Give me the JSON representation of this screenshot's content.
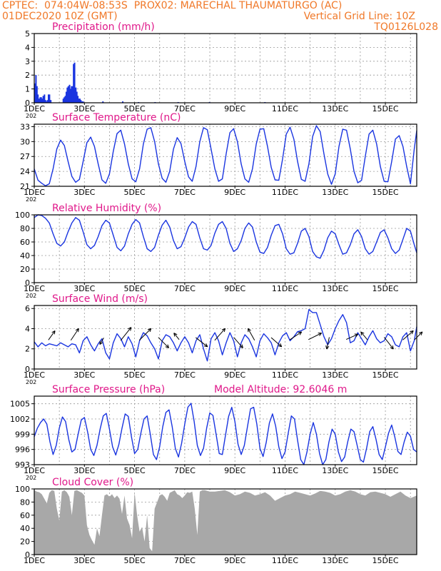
{
  "header": {
    "line1_left": "CPTEC:  074:04W-08:53S  PROX02: MARECHAL THAUMATURGO (AC)",
    "line2_left": "01DEC2020 10Z (GMT)",
    "line2_right": "Vertical Grid Line: 10Z",
    "line3_right": "TQ0126L028"
  },
  "colors": {
    "header": "#f07828",
    "title": "#e0188a",
    "series": "#1a35e0",
    "cloud": "#a8a8a8",
    "grid": "#999999"
  },
  "x_axis": {
    "tick_labels": [
      "1DEC",
      "3DEC",
      "5DEC",
      "7DEC",
      "9DEC",
      "11DEC",
      "13DEC",
      "15DEC"
    ],
    "year_stub": "202",
    "range_days": [
      0,
      15.25
    ],
    "grid_every_days": 1
  },
  "chart_data": [
    {
      "id": "precip",
      "type": "bar",
      "title": "Precipitation (mm/h)",
      "ylim": [
        0,
        5
      ],
      "yticks": [
        0,
        1,
        2,
        3,
        4,
        5
      ],
      "grid": true,
      "x_units": "days since 01DEC2020 10Z",
      "x": [
        0.0,
        0.04,
        0.08,
        0.12,
        0.17,
        0.21,
        0.25,
        0.29,
        0.33,
        0.38,
        0.42,
        0.46,
        0.5,
        0.54,
        0.58,
        0.63,
        1.13,
        1.17,
        1.21,
        1.25,
        1.29,
        1.33,
        1.38,
        1.42,
        1.46,
        1.5,
        1.54,
        1.58,
        1.63,
        1.67,
        1.71,
        1.75,
        1.79,
        1.83,
        1.88,
        1.92,
        2.71,
        3.5,
        4.13,
        4.79,
        5.71,
        6.96,
        9.17
      ],
      "values": [
        1.4,
        2.0,
        1.2,
        0.6,
        0.3,
        0.4,
        0.4,
        0.3,
        0.5,
        0.6,
        0.2,
        0.1,
        0.2,
        0.6,
        0.6,
        0.2,
        0.3,
        0.4,
        0.5,
        0.8,
        1.1,
        1.2,
        1.3,
        1.0,
        1.2,
        1.2,
        2.8,
        2.9,
        1.1,
        0.8,
        0.5,
        0.3,
        0.3,
        0.2,
        0.1,
        0.1,
        0.1,
        0.1,
        0.05,
        0.05,
        0.05,
        0.05,
        0.05
      ]
    },
    {
      "id": "temp",
      "type": "line",
      "title": "Surface Temperature (nC)",
      "ylim": [
        21,
        33.5
      ],
      "yticks": [
        21,
        24,
        27,
        30,
        33
      ],
      "grid": true,
      "x_units": "days since 01DEC2020 10Z",
      "x": [
        0,
        0.15,
        0.3,
        0.45,
        0.6,
        0.75,
        0.9,
        1.05,
        1.2,
        1.35,
        1.5,
        1.65,
        1.8,
        1.95,
        2.1,
        2.25,
        2.4,
        2.55,
        2.7,
        2.85,
        3.0,
        3.15,
        3.3,
        3.45,
        3.6,
        3.75,
        3.9,
        4.05,
        4.2,
        4.35,
        4.5,
        4.65,
        4.8,
        4.95,
        5.1,
        5.25,
        5.4,
        5.55,
        5.7,
        5.85,
        6.0,
        6.15,
        6.3,
        6.45,
        6.6,
        6.75,
        6.9,
        7.05,
        7.2,
        7.35,
        7.5,
        7.65,
        7.8,
        7.95,
        8.1,
        8.25,
        8.4,
        8.55,
        8.7,
        8.85,
        9.0,
        9.15,
        9.3,
        9.45,
        9.6,
        9.75,
        9.9,
        10.05,
        10.2,
        10.35,
        10.5,
        10.65,
        10.8,
        10.95,
        11.1,
        11.25,
        11.4,
        11.55,
        11.7,
        11.85,
        12.0,
        12.15,
        12.3,
        12.45,
        12.6,
        12.75,
        12.9,
        13.05,
        13.2,
        13.35,
        13.5,
        13.65,
        13.8,
        13.95,
        14.1,
        14.25,
        14.4,
        14.55,
        14.7,
        14.85,
        15.0,
        15.15,
        15.25
      ],
      "values": [
        24.5,
        22.2,
        21.6,
        21.1,
        21.5,
        24.5,
        28.5,
        30.3,
        29.2,
        26.0,
        23.0,
        21.8,
        22.4,
        26.0,
        29.8,
        30.9,
        29.0,
        25.5,
        22.3,
        21.6,
        23.5,
        28.0,
        31.6,
        32.3,
        29.5,
        25.5,
        22.5,
        21.9,
        24.5,
        29.5,
        32.5,
        32.8,
        30.0,
        25.5,
        22.6,
        21.8,
        24.0,
        28.5,
        30.8,
        29.6,
        26.0,
        22.9,
        22.0,
        25.0,
        30.0,
        32.8,
        32.4,
        28.5,
        24.5,
        22.0,
        22.5,
        27.5,
        31.8,
        32.6,
        30.0,
        25.5,
        22.5,
        21.8,
        24.5,
        29.5,
        32.5,
        32.6,
        29.0,
        24.8,
        22.3,
        22.2,
        26.5,
        31.5,
        32.9,
        30.5,
        26.0,
        22.4,
        22.0,
        25.5,
        31.0,
        33.2,
        32.0,
        27.5,
        23.5,
        21.4,
        23.5,
        29.0,
        32.5,
        32.3,
        28.5,
        24.0,
        21.7,
        22.2,
        27.0,
        31.5,
        32.3,
        29.5,
        25.0,
        22.0,
        21.9,
        26.0,
        30.5,
        31.2,
        29.0,
        25.0,
        21.5,
        28.5,
        32.2
      ]
    },
    {
      "id": "rh",
      "type": "line",
      "title": "Relative Humidity (%)",
      "ylim": [
        0,
        100
      ],
      "yticks": [
        0,
        20,
        40,
        60,
        80,
        100
      ],
      "grid": true,
      "x_units": "days since 01DEC2020 10Z",
      "x": [
        0,
        0.15,
        0.3,
        0.45,
        0.6,
        0.75,
        0.9,
        1.05,
        1.2,
        1.35,
        1.5,
        1.65,
        1.8,
        1.95,
        2.1,
        2.25,
        2.4,
        2.55,
        2.7,
        2.85,
        3.0,
        3.15,
        3.3,
        3.45,
        3.6,
        3.75,
        3.9,
        4.05,
        4.2,
        4.35,
        4.5,
        4.65,
        4.8,
        4.95,
        5.1,
        5.25,
        5.4,
        5.55,
        5.7,
        5.85,
        6.0,
        6.15,
        6.3,
        6.45,
        6.6,
        6.75,
        6.9,
        7.05,
        7.2,
        7.35,
        7.5,
        7.65,
        7.8,
        7.95,
        8.1,
        8.25,
        8.4,
        8.55,
        8.7,
        8.85,
        9.0,
        9.15,
        9.3,
        9.45,
        9.6,
        9.75,
        9.9,
        10.05,
        10.2,
        10.35,
        10.5,
        10.65,
        10.8,
        10.95,
        11.1,
        11.25,
        11.4,
        11.55,
        11.7,
        11.85,
        12.0,
        12.15,
        12.3,
        12.45,
        12.6,
        12.75,
        12.9,
        13.05,
        13.2,
        13.35,
        13.5,
        13.65,
        13.8,
        13.95,
        14.1,
        14.25,
        14.4,
        14.55,
        14.7,
        14.85,
        15.0,
        15.15,
        15.25
      ],
      "values": [
        96,
        100,
        99,
        95,
        88,
        72,
        58,
        54,
        60,
        75,
        88,
        96,
        92,
        75,
        56,
        50,
        55,
        68,
        84,
        92,
        88,
        70,
        52,
        47,
        54,
        72,
        86,
        93,
        88,
        68,
        50,
        46,
        52,
        70,
        85,
        92,
        82,
        62,
        50,
        53,
        66,
        82,
        90,
        86,
        66,
        50,
        48,
        55,
        73,
        86,
        90,
        80,
        58,
        46,
        50,
        62,
        80,
        88,
        82,
        60,
        45,
        43,
        52,
        70,
        84,
        86,
        72,
        50,
        42,
        44,
        58,
        76,
        80,
        68,
        46,
        38,
        36,
        48,
        66,
        76,
        72,
        56,
        42,
        44,
        56,
        72,
        78,
        68,
        50,
        42,
        46,
        60,
        74,
        78,
        66,
        50,
        43,
        48,
        64,
        80,
        76,
        56,
        44
      ]
    },
    {
      "id": "wind",
      "type": "line",
      "title": "Surface Wind (m/s)",
      "ylim": [
        0,
        6.3
      ],
      "yticks": [
        0,
        2,
        4,
        6
      ],
      "grid": true,
      "x_units": "days since 01DEC2020 10Z",
      "x": [
        0,
        0.15,
        0.3,
        0.45,
        0.6,
        0.75,
        0.9,
        1.05,
        1.2,
        1.35,
        1.5,
        1.65,
        1.8,
        1.95,
        2.1,
        2.25,
        2.4,
        2.55,
        2.7,
        2.85,
        3.0,
        3.15,
        3.3,
        3.45,
        3.6,
        3.75,
        3.9,
        4.05,
        4.2,
        4.35,
        4.5,
        4.65,
        4.8,
        4.95,
        5.1,
        5.25,
        5.4,
        5.55,
        5.7,
        5.85,
        6.0,
        6.15,
        6.3,
        6.45,
        6.6,
        6.75,
        6.9,
        7.05,
        7.2,
        7.35,
        7.5,
        7.65,
        7.8,
        7.95,
        8.1,
        8.25,
        8.4,
        8.55,
        8.7,
        8.85,
        9.0,
        9.15,
        9.3,
        9.45,
        9.6,
        9.75,
        9.9,
        10.05,
        10.2,
        10.35,
        10.5,
        10.65,
        10.8,
        10.95,
        11.1,
        11.25,
        11.4,
        11.55,
        11.7,
        11.85,
        12.0,
        12.15,
        12.3,
        12.45,
        12.6,
        12.75,
        12.9,
        13.05,
        13.2,
        13.35,
        13.5,
        13.65,
        13.8,
        13.95,
        14.1,
        14.25,
        14.4,
        14.55,
        14.7,
        14.85,
        15.0,
        15.15,
        15.25
      ],
      "values": [
        2.7,
        2.2,
        2.6,
        2.3,
        2.5,
        2.4,
        2.3,
        2.6,
        2.4,
        2.2,
        2.5,
        2.4,
        1.6,
        2.8,
        3.2,
        2.4,
        1.8,
        2.5,
        3.0,
        1.6,
        1.0,
        2.6,
        3.5,
        3.0,
        2.2,
        3.2,
        2.5,
        1.2,
        2.8,
        3.6,
        3.3,
        2.6,
        2.0,
        1.0,
        2.8,
        3.4,
        3.2,
        2.6,
        1.8,
        2.6,
        3.2,
        2.6,
        1.6,
        2.8,
        3.4,
        2.0,
        0.8,
        3.0,
        3.6,
        2.8,
        1.4,
        2.6,
        3.6,
        2.8,
        1.2,
        2.6,
        3.4,
        3.0,
        2.2,
        1.2,
        2.8,
        3.5,
        3.1,
        2.6,
        1.4,
        2.6,
        3.3,
        3.6,
        2.8,
        3.2,
        3.7,
        3.8,
        4.0,
        5.9,
        5.6,
        5.6,
        4.4,
        3.2,
        2.4,
        3.0,
        4.0,
        4.8,
        5.4,
        4.6,
        2.6,
        2.8,
        3.6,
        3.0,
        2.4,
        3.2,
        3.8,
        3.0,
        2.6,
        2.8,
        3.5,
        3.2,
        2.4,
        2.2,
        3.2,
        3.6,
        1.8,
        2.8,
        4.2
      ],
      "arrows": {
        "x": [
          0.6,
          1.5,
          2.75,
          3.5,
          4.25,
          5.0,
          5.75,
          6.5,
          7.25,
          8.0,
          8.75,
          9.5,
          10.25,
          11.0,
          11.75,
          12.5,
          13.25,
          14.0,
          14.75,
          15.2
        ],
        "u": [
          0.5,
          0.6,
          -0.3,
          0.8,
          0.9,
          0.8,
          -0.4,
          0.9,
          0.8,
          0.7,
          -0.5,
          0.8,
          0.9,
          1.0,
          -0.2,
          0.9,
          -0.5,
          0.7,
          0.8,
          0.6
        ],
        "v": [
          0.7,
          0.9,
          -0.5,
          1.0,
          0.9,
          -0.8,
          0.5,
          -0.7,
          0.9,
          -0.8,
          0.9,
          -0.7,
          0.6,
          0.5,
          -0.9,
          0.4,
          0.6,
          -0.9,
          0.7,
          0.6
        ]
      }
    },
    {
      "id": "pres",
      "type": "line",
      "title": "Surface Pressure (hPa)",
      "annotation": "Model Altitude: 92.6046 m",
      "ylim": [
        993,
        1006.5
      ],
      "yticks": [
        993,
        996,
        999,
        1002,
        1005
      ],
      "grid": true,
      "x_units": "days since 01DEC2020 10Z",
      "x": [
        0,
        0.125,
        0.25,
        0.375,
        0.5,
        0.625,
        0.75,
        0.875,
        1.0,
        1.125,
        1.25,
        1.375,
        1.5,
        1.625,
        1.75,
        1.875,
        2.0,
        2.125,
        2.25,
        2.375,
        2.5,
        2.625,
        2.75,
        2.875,
        3.0,
        3.125,
        3.25,
        3.375,
        3.5,
        3.625,
        3.75,
        3.875,
        4.0,
        4.125,
        4.25,
        4.375,
        4.5,
        4.625,
        4.75,
        4.875,
        5.0,
        5.125,
        5.25,
        5.375,
        5.5,
        5.625,
        5.75,
        5.875,
        6.0,
        6.125,
        6.25,
        6.375,
        6.5,
        6.625,
        6.75,
        6.875,
        7.0,
        7.125,
        7.25,
        7.375,
        7.5,
        7.625,
        7.75,
        7.875,
        8.0,
        8.125,
        8.25,
        8.375,
        8.5,
        8.625,
        8.75,
        8.875,
        9.0,
        9.125,
        9.25,
        9.375,
        9.5,
        9.625,
        9.75,
        9.875,
        10.0,
        10.125,
        10.25,
        10.375,
        10.5,
        10.625,
        10.75,
        10.875,
        11.0,
        11.125,
        11.25,
        11.375,
        11.5,
        11.625,
        11.75,
        11.875,
        12.0,
        12.125,
        12.25,
        12.375,
        12.5,
        12.625,
        12.75,
        12.875,
        13.0,
        13.125,
        13.25,
        13.375,
        13.5,
        13.625,
        13.75,
        13.875,
        14.0,
        14.125,
        14.25,
        14.375,
        14.5,
        14.625,
        14.75,
        14.875,
        15.0,
        15.125,
        15.25
      ],
      "values": [
        998.5,
        1000.2,
        1001.3,
        1002.0,
        1001.0,
        997.5,
        995.0,
        996.8,
        1000.2,
        1002.4,
        1001.5,
        998.0,
        995.5,
        996.0,
        999.0,
        1001.8,
        1002.3,
        999.5,
        996.0,
        994.8,
        996.8,
        1000.0,
        1002.6,
        1003.1,
        1000.0,
        996.5,
        994.9,
        997.0,
        1000.2,
        1003.0,
        1002.5,
        998.5,
        995.2,
        996.0,
        999.2,
        1002.0,
        1002.6,
        999.0,
        995.0,
        994.0,
        996.5,
        1000.5,
        1003.3,
        1003.8,
        1000.5,
        996.2,
        994.5,
        997.2,
        1001.0,
        1004.3,
        1005.1,
        1001.5,
        996.8,
        994.8,
        996.2,
        1000.2,
        1003.2,
        1002.7,
        999.0,
        995.2,
        995.0,
        998.8,
        1002.5,
        1004.3,
        1001.5,
        997.0,
        995.0,
        996.8,
        1000.5,
        1004.0,
        1004.3,
        1001.0,
        996.2,
        994.6,
        997.4,
        1001.2,
        1003.0,
        1000.6,
        996.5,
        994.2,
        995.5,
        999.2,
        1002.6,
        1002.0,
        997.8,
        994.0,
        993.0,
        995.5,
        999.0,
        1001.3,
        999.0,
        995.2,
        992.5,
        994.0,
        997.5,
        1000.0,
        999.0,
        995.5,
        993.6,
        994.5,
        997.5,
        1000.0,
        999.5,
        996.8,
        994.0,
        993.5,
        996.2,
        999.5,
        1000.5,
        998.0,
        995.0,
        994.0,
        996.5,
        999.2,
        1000.8,
        998.5,
        995.6,
        995.0,
        997.5,
        999.4,
        998.6,
        996.0,
        995.5
      ]
    },
    {
      "id": "cloud",
      "type": "area",
      "title": "Cloud Cover (%)",
      "ylim": [
        0,
        100
      ],
      "yticks": [
        0,
        20,
        40,
        60,
        80,
        100
      ],
      "grid": true,
      "x_units": "days since 01DEC2020 10Z",
      "x": [
        0,
        0.1,
        0.2,
        0.3,
        0.4,
        0.5,
        0.6,
        0.7,
        0.8,
        0.9,
        1.0,
        1.1,
        1.2,
        1.3,
        1.4,
        1.5,
        1.6,
        1.7,
        1.8,
        1.9,
        2.0,
        2.1,
        2.2,
        2.3,
        2.4,
        2.5,
        2.6,
        2.7,
        2.8,
        2.9,
        3.0,
        3.1,
        3.2,
        3.3,
        3.4,
        3.5,
        3.6,
        3.7,
        3.8,
        3.9,
        4.0,
        4.1,
        4.2,
        4.3,
        4.4,
        4.5,
        4.6,
        4.7,
        4.8,
        4.9,
        5.0,
        5.1,
        5.2,
        5.3,
        5.4,
        5.5,
        5.6,
        5.7,
        5.8,
        5.9,
        6.0,
        6.1,
        6.2,
        6.3,
        6.4,
        6.5,
        6.6,
        6.7,
        6.8,
        6.9,
        7.0,
        7.2,
        7.4,
        7.6,
        7.8,
        8.0,
        8.2,
        8.4,
        8.6,
        8.8,
        9.0,
        9.2,
        9.4,
        9.6,
        9.8,
        10.0,
        10.2,
        10.4,
        10.6,
        10.8,
        11.0,
        11.2,
        11.4,
        11.6,
        11.8,
        12.0,
        12.2,
        12.4,
        12.6,
        12.8,
        13.0,
        13.2,
        13.4,
        13.6,
        13.8,
        14.0,
        14.2,
        14.4,
        14.6,
        14.8,
        15.0,
        15.25
      ],
      "values": [
        98,
        96,
        95,
        92,
        85,
        78,
        94,
        98,
        97,
        70,
        52,
        96,
        98,
        95,
        88,
        60,
        97,
        98,
        96,
        94,
        90,
        45,
        30,
        22,
        15,
        40,
        28,
        60,
        90,
        92,
        88,
        92,
        86,
        90,
        85,
        62,
        90,
        55,
        45,
        25,
        95,
        60,
        35,
        42,
        20,
        60,
        10,
        5,
        70,
        80,
        90,
        92,
        88,
        82,
        94,
        96,
        98,
        92,
        90,
        86,
        90,
        95,
        94,
        96,
        70,
        30,
        96,
        98,
        98,
        97,
        96,
        96,
        97,
        98,
        95,
        90,
        92,
        96,
        94,
        90,
        92,
        95,
        90,
        82,
        86,
        90,
        92,
        96,
        94,
        92,
        90,
        93,
        97,
        96,
        94,
        90,
        92,
        96,
        98,
        96,
        92,
        90,
        95,
        96,
        94,
        92,
        88,
        92,
        96,
        90,
        86,
        90
      ]
    }
  ]
}
